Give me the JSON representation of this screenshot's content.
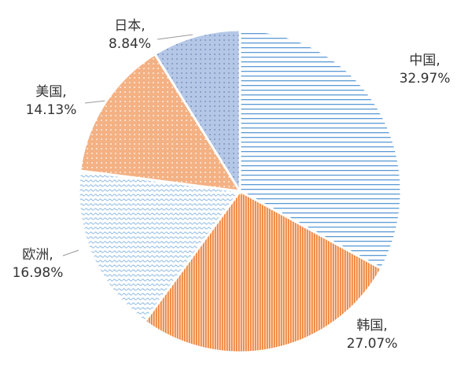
{
  "chart_data": {
    "type": "pie",
    "categories": [
      "中国,",
      "韩国,",
      "欧洲,",
      "美国,",
      "日本,"
    ],
    "values": [
      32.97,
      27.07,
      16.98,
      14.13,
      8.84
    ],
    "value_labels": [
      "32.97%",
      "27.07%",
      "16.98%",
      "14.13%",
      "8.84%"
    ],
    "colors": [
      "#5b9bd5",
      "#ed7d31",
      "#9dc3e6",
      "#f4b183",
      "#b4c7e7"
    ]
  }
}
